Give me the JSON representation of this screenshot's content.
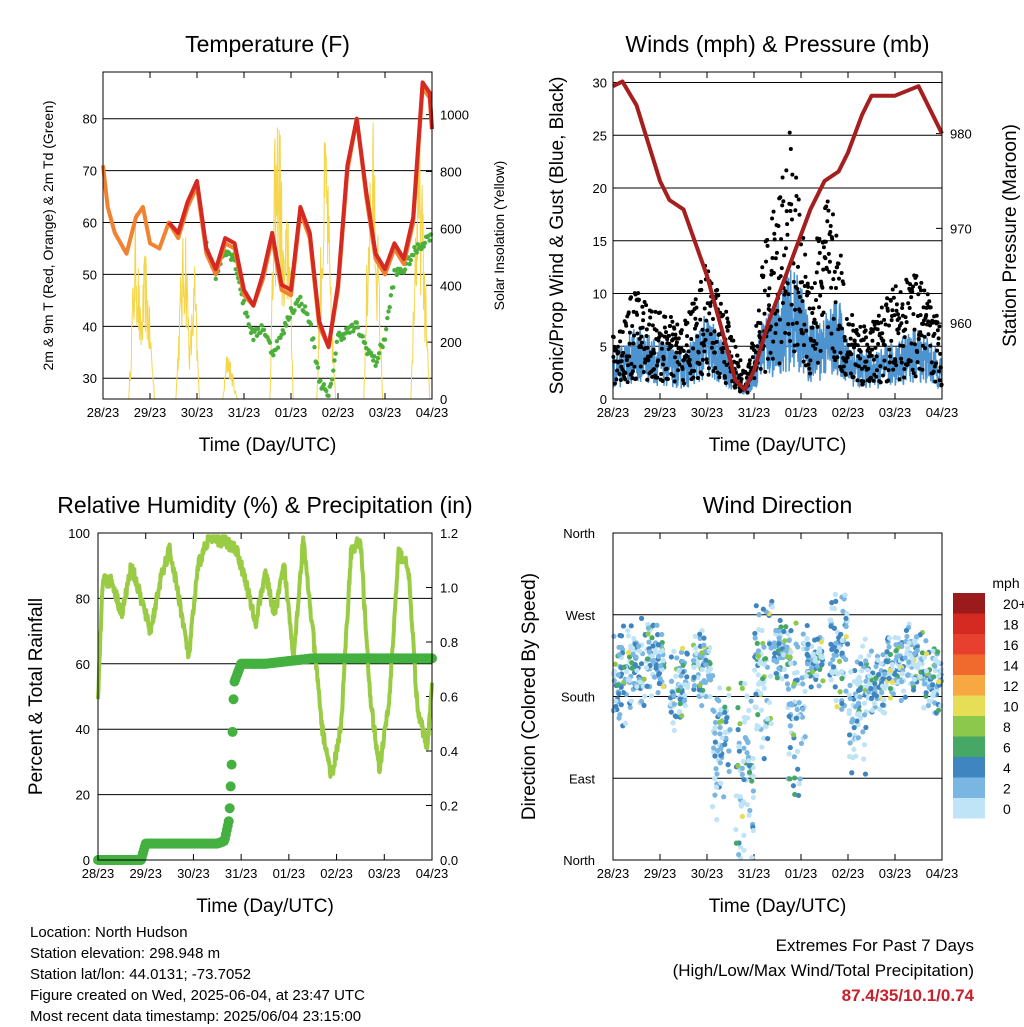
{
  "x_ticks": [
    "28/23",
    "29/23",
    "30/23",
    "31/23",
    "01/23",
    "02/23",
    "03/23",
    "04/23"
  ],
  "x_label": "Time (Day/UTC)",
  "colors": {
    "temp_red": "#d42a22",
    "temp_orange": "#f08232",
    "dewpoint": "#4caf3c",
    "solar": "#f5d64a",
    "wind": "#4c93cf",
    "gust": "#000000",
    "pressure": "#a51f1f",
    "rh": "#99cc44",
    "rain": "#44b040",
    "extremes": "#c8202a"
  },
  "chart_data": [
    {
      "type": "line",
      "title": "Temperature (F)",
      "ylabel": "2m & 9m T (Red, Orange) & 2m Td (Green)",
      "y2label": "Solar Insolation (Yellow)",
      "ylim": [
        26,
        89
      ],
      "y2lim": [
        0,
        1150
      ],
      "yticks": [
        30,
        40,
        50,
        60,
        70,
        80
      ],
      "y2ticks": [
        0,
        200,
        400,
        600,
        800,
        1000
      ],
      "grid": true,
      "series": [
        {
          "id": "t2",
          "color": "#f08232",
          "x": [
            0,
            0.1,
            0.25,
            0.5,
            0.7,
            0.85,
            1.0,
            1.2,
            1.4,
            1.6,
            1.8,
            2.0,
            2.2,
            2.4,
            2.6,
            2.8,
            3.0,
            3.2,
            3.4,
            3.6,
            3.8,
            4.0,
            4.2,
            4.4,
            4.6,
            4.8,
            5.0,
            5.2,
            5.4,
            5.6,
            5.8,
            6.0,
            6.2,
            6.4,
            6.6,
            6.8,
            6.95,
            7.0
          ],
          "y": [
            71,
            63,
            58,
            54,
            61,
            63,
            56,
            55,
            60,
            57,
            63,
            67,
            54,
            50,
            56,
            55,
            46,
            44,
            49,
            57,
            47,
            46,
            62,
            57,
            40,
            36,
            47,
            70,
            80,
            65,
            53,
            50,
            55,
            52,
            60,
            86,
            84,
            78
          ]
        },
        {
          "id": "t9",
          "color": "#d42a22",
          "x": [
            1.4,
            1.6,
            1.8,
            2.0,
            2.2,
            2.4,
            2.6,
            2.8,
            3.0,
            3.2,
            3.4,
            3.6,
            3.8,
            4.0,
            4.2,
            4.4,
            4.6,
            4.8,
            5.0,
            5.2,
            5.4,
            5.6,
            5.8,
            6.0,
            6.2,
            6.4,
            6.6,
            6.8,
            6.95,
            7.0
          ],
          "y": [
            60,
            58,
            64,
            68,
            55,
            51,
            57,
            56,
            47,
            44,
            50,
            58,
            48,
            47,
            63,
            58,
            41,
            36,
            48,
            71,
            80,
            66,
            54,
            51,
            56,
            53,
            61,
            87,
            85,
            78
          ]
        },
        {
          "id": "td",
          "color": "#4caf3c",
          "x": [
            2.2,
            2.4,
            2.6,
            2.8,
            3.0,
            3.2,
            3.4,
            3.6,
            3.8,
            4.0,
            4.2,
            4.4,
            4.6,
            4.8,
            5.0,
            5.2,
            5.4,
            5.6,
            5.8,
            6.0,
            6.2,
            6.4,
            6.6,
            6.8,
            7.0
          ],
          "y": [
            56,
            50,
            55,
            53,
            44,
            38,
            40,
            35,
            38,
            43,
            45,
            41,
            30,
            26,
            38,
            39,
            40,
            36,
            33,
            38,
            50,
            51,
            54,
            56,
            58
          ]
        },
        {
          "id": "solar",
          "color": "#f5d64a",
          "axis": "y2",
          "x": [
            0.55,
            0.65,
            0.7,
            0.8,
            0.9,
            1.0,
            1.1,
            1.55,
            1.65,
            1.75,
            1.85,
            1.95,
            2.05,
            2.55,
            2.65,
            2.75,
            2.85,
            3.55,
            3.65,
            3.75,
            3.85,
            3.95,
            4.05,
            4.55,
            4.65,
            4.75,
            4.85,
            4.95,
            5.55,
            5.65,
            5.75,
            5.85,
            5.95,
            6.55,
            6.65,
            6.75,
            6.85,
            6.95
          ],
          "y": [
            0,
            500,
            700,
            300,
            550,
            300,
            0,
            0,
            450,
            700,
            200,
            500,
            0,
            0,
            200,
            100,
            0,
            0,
            900,
            1100,
            500,
            800,
            0,
            0,
            700,
            1050,
            400,
            0,
            0,
            800,
            1000,
            600,
            0,
            0,
            700,
            950,
            500,
            0
          ]
        }
      ]
    },
    {
      "type": "scatter",
      "title": "Winds (mph) & Pressure (mb)",
      "ylabel": "Sonic/Prop Wind & Gust (Blue, Black)",
      "y2label": "Station Pressure (Maroon)",
      "ylim": [
        0,
        31
      ],
      "y2lim": [
        952,
        986.5
      ],
      "yticks": [
        0,
        5,
        10,
        15,
        20,
        25,
        30
      ],
      "y2ticks": [
        960,
        970,
        980
      ],
      "grid": true,
      "series": [
        {
          "id": "wind_envelope",
          "color": "#4c93cf",
          "x": [
            0,
            0.5,
            1.0,
            1.5,
            2.0,
            2.5,
            2.8,
            3.0,
            3.2,
            3.5,
            3.8,
            4.0,
            4.2,
            4.5,
            4.8,
            5.0,
            5.5,
            6.0,
            6.5,
            7.0
          ],
          "y": [
            3,
            5,
            4,
            3,
            6,
            3,
            1,
            3,
            6,
            7,
            9,
            8,
            5,
            6,
            7,
            4,
            3,
            4,
            5,
            3
          ]
        },
        {
          "id": "gust_envelope",
          "color": "#000000",
          "x": [
            0,
            0.5,
            1.0,
            1.5,
            2.0,
            2.5,
            2.8,
            3.0,
            3.2,
            3.5,
            3.8,
            4.0,
            4.2,
            4.5,
            4.8,
            5.0,
            5.5,
            6.0,
            6.5,
            7.0
          ],
          "y": [
            5,
            9,
            7,
            6,
            11,
            6,
            2,
            5,
            12,
            16,
            22,
            14,
            10,
            17,
            13,
            7,
            6,
            9,
            10,
            6
          ]
        },
        {
          "id": "pressure",
          "color": "#a51f1f",
          "axis": "y2",
          "x": [
            0,
            0.2,
            0.5,
            1.0,
            1.2,
            1.5,
            2.0,
            2.5,
            2.6,
            2.8,
            3.0,
            3.3,
            3.6,
            3.9,
            4.2,
            4.5,
            4.8,
            5.0,
            5.3,
            5.5,
            6.0,
            6.5,
            7.0
          ],
          "y": [
            985,
            985.5,
            983,
            975,
            973,
            972,
            965,
            956,
            954,
            953,
            955,
            960,
            964,
            968,
            972,
            975,
            976,
            978,
            982,
            984,
            984,
            985,
            980
          ]
        }
      ]
    },
    {
      "type": "line",
      "title": "Relative Humidity (%) & Precipitation (in)",
      "ylabel": "Percent & Total Rainfall",
      "ylim": [
        0,
        100
      ],
      "y2lim": [
        0,
        1.2
      ],
      "yticks": [
        0,
        20,
        40,
        60,
        80,
        100
      ],
      "y2ticks": [
        "0.0",
        "0.2",
        "0.4",
        "0.6",
        "0.8",
        "1.0",
        "1.2"
      ],
      "grid": true,
      "series": [
        {
          "id": "rh",
          "color": "#99cc44",
          "x": [
            0,
            0.1,
            0.3,
            0.5,
            0.7,
            0.9,
            1.1,
            1.3,
            1.5,
            1.7,
            1.9,
            2.1,
            2.3,
            2.5,
            2.7,
            2.9,
            3.1,
            3.3,
            3.5,
            3.7,
            3.9,
            4.1,
            4.3,
            4.5,
            4.7,
            4.9,
            5.1,
            5.3,
            5.5,
            5.7,
            5.9,
            6.1,
            6.3,
            6.5,
            6.7,
            6.9,
            7.0
          ],
          "y": [
            50,
            86,
            85,
            75,
            90,
            80,
            70,
            85,
            95,
            80,
            62,
            90,
            98,
            98,
            97,
            95,
            85,
            72,
            88,
            75,
            90,
            62,
            98,
            70,
            40,
            25,
            42,
            94,
            98,
            50,
            28,
            48,
            94,
            90,
            45,
            35,
            53
          ]
        },
        {
          "id": "precip",
          "color": "#44b040",
          "axis": "y2",
          "x": [
            0,
            0.9,
            1.0,
            2.5,
            2.65,
            2.75,
            2.8,
            2.85,
            3.0,
            3.5,
            4.5,
            7.0
          ],
          "y": [
            0.0,
            0.0,
            0.06,
            0.06,
            0.07,
            0.15,
            0.35,
            0.65,
            0.72,
            0.72,
            0.74,
            0.74
          ]
        }
      ]
    },
    {
      "type": "scatter",
      "title": "Wind Direction",
      "ylabel": "Direction (Colored By Speed)",
      "ylim": [
        0,
        360
      ],
      "yticks": [
        "North",
        "East",
        "South",
        "West",
        "North"
      ],
      "grid": true,
      "legend": {
        "title": "mph",
        "position": "right",
        "labels": [
          "20+",
          "18",
          "16",
          "14",
          "12",
          "10",
          "8",
          "6",
          "4",
          "2",
          "0"
        ],
        "colors": [
          "#9b1a1c",
          "#d42a22",
          "#e8402e",
          "#f06a2e",
          "#f8a842",
          "#e6de56",
          "#8cc84b",
          "#47a866",
          "#3f85c0",
          "#7ab6e2",
          "#bfe3f7"
        ]
      },
      "clusters": [
        {
          "x": 0.1,
          "y": 200,
          "spread": 60
        },
        {
          "x": 0.5,
          "y": 215,
          "spread": 55
        },
        {
          "x": 0.9,
          "y": 220,
          "spread": 50
        },
        {
          "x": 1.4,
          "y": 190,
          "spread": 55
        },
        {
          "x": 1.9,
          "y": 210,
          "spread": 50
        },
        {
          "x": 2.3,
          "y": 130,
          "spread": 90
        },
        {
          "x": 2.8,
          "y": 90,
          "spread": 110
        },
        {
          "x": 3.2,
          "y": 200,
          "spread": 100
        },
        {
          "x": 3.6,
          "y": 230,
          "spread": 40
        },
        {
          "x": 3.9,
          "y": 170,
          "spread": 110
        },
        {
          "x": 4.3,
          "y": 220,
          "spread": 40
        },
        {
          "x": 4.8,
          "y": 230,
          "spread": 70
        },
        {
          "x": 5.2,
          "y": 170,
          "spread": 80
        },
        {
          "x": 5.6,
          "y": 195,
          "spread": 40
        },
        {
          "x": 6.0,
          "y": 210,
          "spread": 40
        },
        {
          "x": 6.4,
          "y": 220,
          "spread": 45
        },
        {
          "x": 6.8,
          "y": 200,
          "spread": 45
        }
      ]
    }
  ],
  "info": {
    "location": "Location: North Hudson",
    "elevation": "Station elevation: 298.948 m",
    "latlon": "Station lat/lon: 44.0131; -73.7052",
    "created": "Figure created on Wed, 2025-06-04, at 23:47 UTC",
    "recent": "Most recent data timestamp: 2025/06/04 23:15:00"
  },
  "extremes": {
    "title": "Extremes For Past 7 Days",
    "subtitle": "(High/Low/Max Wind/Total Precipitation)",
    "values": "87.4/35/10.1/0.74"
  }
}
